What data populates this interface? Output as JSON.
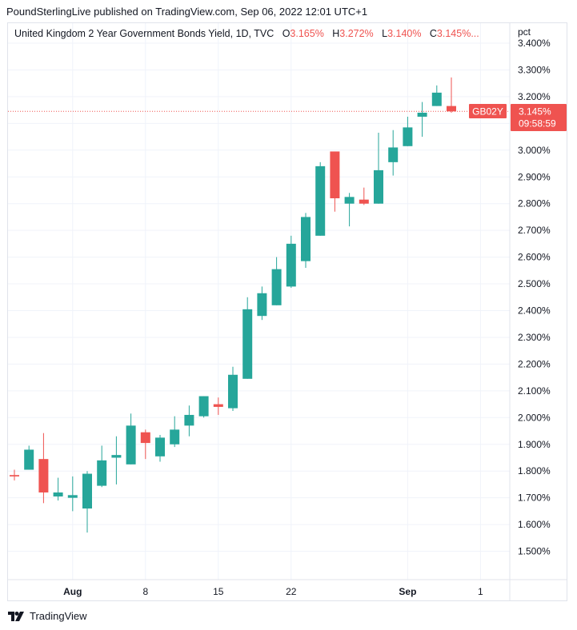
{
  "header": {
    "text": "PoundSterlingLive published on TradingView.com, Sep 06, 2022 12:01 UTC+1"
  },
  "legend": {
    "title": "United Kingdom 2 Year Government Bonds Yield, 1D, TVC",
    "o_label": "O",
    "o_value": "3.165%",
    "h_label": "H",
    "h_value": "3.272%",
    "l_label": "L",
    "l_value": "3.140%",
    "c_label": "C",
    "c_value": "3.145%...",
    "value_color": "#ef5350"
  },
  "price_label": {
    "symbol": "GB02Y",
    "value": "3.145%",
    "countdown": "09:58:59",
    "color": "#ef5350"
  },
  "footer": {
    "brand": "TradingView"
  },
  "chart_data": {
    "type": "candlestick",
    "unit_label": "pct",
    "ylim": [
      1.4,
      3.4
    ],
    "y_ticks": [
      "3.400%",
      "3.300%",
      "3.200%",
      "3.100%",
      "3.000%",
      "2.900%",
      "2.800%",
      "2.700%",
      "2.600%",
      "2.500%",
      "2.400%",
      "2.300%",
      "2.200%",
      "2.100%",
      "2.000%",
      "1.900%",
      "1.800%",
      "1.700%",
      "1.600%",
      "1.500%"
    ],
    "x_ticks": [
      "Aug",
      "8",
      "15",
      "22",
      "Sep",
      "1"
    ],
    "grid": true,
    "up_color": "#26a69a",
    "down_color": "#ef5350",
    "last_price": 3.145,
    "candles": [
      {
        "date": "2022-07-26",
        "open": 1.785,
        "high": 1.805,
        "low": 1.765,
        "close": 1.78
      },
      {
        "date": "2022-07-27",
        "open": 1.805,
        "high": 1.895,
        "low": 1.805,
        "close": 1.88
      },
      {
        "date": "2022-07-28",
        "open": 1.845,
        "high": 1.942,
        "low": 1.68,
        "close": 1.72
      },
      {
        "date": "2022-07-29",
        "open": 1.705,
        "high": 1.775,
        "low": 1.69,
        "close": 1.72
      },
      {
        "date": "2022-08-01",
        "open": 1.7,
        "high": 1.78,
        "low": 1.65,
        "close": 1.71
      },
      {
        "date": "2022-08-02",
        "open": 1.66,
        "high": 1.8,
        "low": 1.57,
        "close": 1.79
      },
      {
        "date": "2022-08-03",
        "open": 1.745,
        "high": 1.895,
        "low": 1.74,
        "close": 1.84
      },
      {
        "date": "2022-08-04",
        "open": 1.85,
        "high": 1.93,
        "low": 1.75,
        "close": 1.86
      },
      {
        "date": "2022-08-05",
        "open": 1.825,
        "high": 2.015,
        "low": 1.825,
        "close": 1.97
      },
      {
        "date": "2022-08-08",
        "open": 1.945,
        "high": 1.955,
        "low": 1.845,
        "close": 1.905
      },
      {
        "date": "2022-08-09",
        "open": 1.855,
        "high": 1.935,
        "low": 1.835,
        "close": 1.925
      },
      {
        "date": "2022-08-10",
        "open": 1.9,
        "high": 2.005,
        "low": 1.89,
        "close": 1.955
      },
      {
        "date": "2022-08-11",
        "open": 1.97,
        "high": 2.045,
        "low": 1.93,
        "close": 2.01
      },
      {
        "date": "2022-08-12",
        "open": 2.005,
        "high": 2.08,
        "low": 2.0,
        "close": 2.08
      },
      {
        "date": "2022-08-15",
        "open": 2.05,
        "high": 2.075,
        "low": 2.01,
        "close": 2.04
      },
      {
        "date": "2022-08-16",
        "open": 2.035,
        "high": 2.19,
        "low": 2.025,
        "close": 2.16
      },
      {
        "date": "2022-08-17",
        "open": 2.145,
        "high": 2.45,
        "low": 2.145,
        "close": 2.405
      },
      {
        "date": "2022-08-18",
        "open": 2.38,
        "high": 2.49,
        "low": 2.365,
        "close": 2.465
      },
      {
        "date": "2022-08-19",
        "open": 2.42,
        "high": 2.6,
        "low": 2.42,
        "close": 2.555
      },
      {
        "date": "2022-08-22",
        "open": 2.49,
        "high": 2.68,
        "low": 2.485,
        "close": 2.65
      },
      {
        "date": "2022-08-23",
        "open": 2.585,
        "high": 2.765,
        "low": 2.56,
        "close": 2.75
      },
      {
        "date": "2022-08-24",
        "open": 2.68,
        "high": 2.955,
        "low": 2.68,
        "close": 2.94
      },
      {
        "date": "2022-08-25",
        "open": 2.995,
        "high": 2.995,
        "low": 2.77,
        "close": 2.82
      },
      {
        "date": "2022-08-26",
        "open": 2.8,
        "high": 2.84,
        "low": 2.715,
        "close": 2.825
      },
      {
        "date": "2022-08-29",
        "open": 2.815,
        "high": 2.86,
        "low": 2.795,
        "close": 2.8
      },
      {
        "date": "2022-08-30",
        "open": 2.8,
        "high": 3.065,
        "low": 2.8,
        "close": 2.925
      },
      {
        "date": "2022-08-31",
        "open": 2.955,
        "high": 3.075,
        "low": 2.905,
        "close": 3.01
      },
      {
        "date": "2022-09-01",
        "open": 3.015,
        "high": 3.125,
        "low": 3.015,
        "close": 3.085
      },
      {
        "date": "2022-09-02",
        "open": 3.125,
        "high": 3.18,
        "low": 3.05,
        "close": 3.14
      },
      {
        "date": "2022-09-05",
        "open": 3.165,
        "high": 3.242,
        "low": 3.165,
        "close": 3.215
      },
      {
        "date": "2022-09-06",
        "open": 3.165,
        "high": 3.272,
        "low": 3.14,
        "close": 3.145
      }
    ]
  }
}
